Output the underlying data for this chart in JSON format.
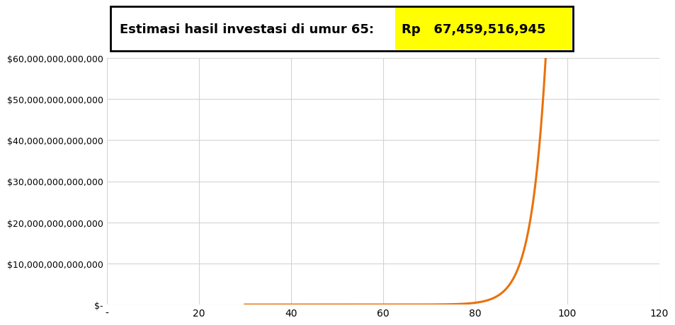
{
  "title_left": "Estimasi hasil investasi di umur 65:",
  "title_right": "Rp   67,459,516,945",
  "title_left_color": "#000000",
  "title_right_color": "#000000",
  "title_right_bg": "#FFFF00",
  "title_box_bg": "#FFFFFF",
  "title_fontsize": 13,
  "line_color": "#E8720C",
  "line_width": 2.2,
  "xlim": [
    0,
    120
  ],
  "ylim": [
    0,
    60000000000000
  ],
  "xticks": [
    0,
    20,
    40,
    60,
    80,
    100,
    120
  ],
  "xticklabels": [
    "-",
    "20",
    "40",
    "60",
    "80",
    "100",
    "120"
  ],
  "ytick_values": [
    0,
    10000000000000,
    20000000000000,
    30000000000000,
    40000000000000,
    50000000000000,
    60000000000000
  ],
  "ytick_labels": [
    "$-",
    "$10,000,000,000,000",
    "$20,000,000,000,000",
    "$30,000,000,000,000",
    "$40,000,000,000,000",
    "$50,000,000,000,000",
    "$60,000,000,000,000"
  ],
  "grid_color": "#D3D3D3",
  "background_color": "#FFFFFF",
  "curve_x_start": 30,
  "curve_x_end": 113,
  "growth_rate": 0.32,
  "base_value": 50000
}
